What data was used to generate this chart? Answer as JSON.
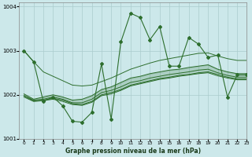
{
  "title": "Graphe pression niveau de la mer (hPa)",
  "background_color": "#cce8ea",
  "grid_color": "#aacccc",
  "line_color": "#2d6e2d",
  "xlim": [
    -0.5,
    23
  ],
  "ylim": [
    1001,
    1004.1
  ],
  "yticks": [
    1001,
    1002,
    1003,
    1004
  ],
  "ytick_labels": [
    "1001",
    "1002",
    "1003",
    "1004"
  ],
  "xticks": [
    0,
    1,
    2,
    3,
    4,
    5,
    6,
    7,
    8,
    9,
    10,
    11,
    12,
    13,
    14,
    15,
    16,
    17,
    18,
    19,
    20,
    21,
    22,
    23
  ],
  "series1_x": [
    0,
    1,
    2,
    3,
    4,
    5,
    6,
    7,
    8,
    9,
    10,
    11,
    12,
    13,
    14,
    15,
    16,
    17,
    18,
    19,
    20,
    21,
    22,
    23
  ],
  "series1_y": [
    1003.0,
    1002.75,
    1001.85,
    1001.95,
    1001.75,
    1001.4,
    1001.38,
    1001.6,
    1002.7,
    1001.45,
    1003.2,
    1003.85,
    1003.75,
    1003.25,
    1003.55,
    1002.65,
    1002.65,
    1003.3,
    1003.15,
    1002.85,
    1002.9,
    1001.95,
    1002.45,
    1002.45
  ],
  "band_top_x": [
    0,
    1,
    2,
    3,
    4,
    5,
    6,
    7,
    8,
    9,
    10,
    11,
    12,
    13,
    14,
    15,
    16,
    17,
    18,
    19,
    20,
    21,
    22,
    23
  ],
  "band_top_y": [
    1002.02,
    1001.9,
    1001.95,
    1002.0,
    1001.95,
    1001.88,
    1001.9,
    1001.98,
    1002.12,
    1002.18,
    1002.28,
    1002.38,
    1002.42,
    1002.48,
    1002.52,
    1002.56,
    1002.58,
    1002.62,
    1002.65,
    1002.68,
    1002.58,
    1002.52,
    1002.48,
    1002.48
  ],
  "band_mid1_x": [
    0,
    1,
    2,
    3,
    4,
    5,
    6,
    7,
    8,
    9,
    10,
    11,
    12,
    13,
    14,
    15,
    16,
    17,
    18,
    19,
    20,
    21,
    22,
    23
  ],
  "band_mid1_y": [
    1001.98,
    1001.88,
    1001.9,
    1001.95,
    1001.9,
    1001.82,
    1001.82,
    1001.9,
    1002.05,
    1002.1,
    1002.18,
    1002.28,
    1002.32,
    1002.38,
    1002.42,
    1002.46,
    1002.49,
    1002.52,
    1002.56,
    1002.58,
    1002.5,
    1002.44,
    1002.4,
    1002.4
  ],
  "band_mid2_x": [
    0,
    1,
    2,
    3,
    4,
    5,
    6,
    7,
    8,
    9,
    10,
    11,
    12,
    13,
    14,
    15,
    16,
    17,
    18,
    19,
    20,
    21,
    22,
    23
  ],
  "band_mid2_y": [
    1001.95,
    1001.85,
    1001.87,
    1001.9,
    1001.85,
    1001.78,
    1001.76,
    1001.83,
    1001.98,
    1002.02,
    1002.1,
    1002.2,
    1002.25,
    1002.3,
    1002.35,
    1002.38,
    1002.42,
    1002.45,
    1002.48,
    1002.5,
    1002.43,
    1002.38,
    1002.34,
    1002.34
  ],
  "band_bot_x": [
    0,
    1,
    2,
    3,
    4,
    5,
    6,
    7,
    8,
    9,
    10,
    11,
    12,
    13,
    14,
    15,
    16,
    17,
    18,
    19,
    20,
    21,
    22,
    23
  ],
  "band_bot_y": [
    1001.98,
    1001.86,
    1001.88,
    1001.92,
    1001.88,
    1001.8,
    1001.78,
    1001.85,
    1002.0,
    1002.05,
    1002.12,
    1002.22,
    1002.27,
    1002.32,
    1002.37,
    1002.4,
    1002.44,
    1002.46,
    1002.5,
    1002.52,
    1002.46,
    1002.4,
    1002.36,
    1002.36
  ],
  "upper_line_x": [
    0,
    1,
    2,
    3,
    4,
    5,
    6,
    7,
    8,
    9,
    10,
    11,
    12,
    13,
    14,
    15,
    16,
    17,
    18,
    19,
    20,
    21,
    22,
    23
  ],
  "upper_line_y": [
    1003.0,
    1002.75,
    1002.52,
    1002.42,
    1002.32,
    1002.22,
    1002.2,
    1002.22,
    1002.3,
    1002.38,
    1002.48,
    1002.58,
    1002.65,
    1002.72,
    1002.78,
    1002.82,
    1002.86,
    1002.9,
    1002.94,
    1002.95,
    1002.88,
    1002.82,
    1002.78,
    1002.78
  ]
}
